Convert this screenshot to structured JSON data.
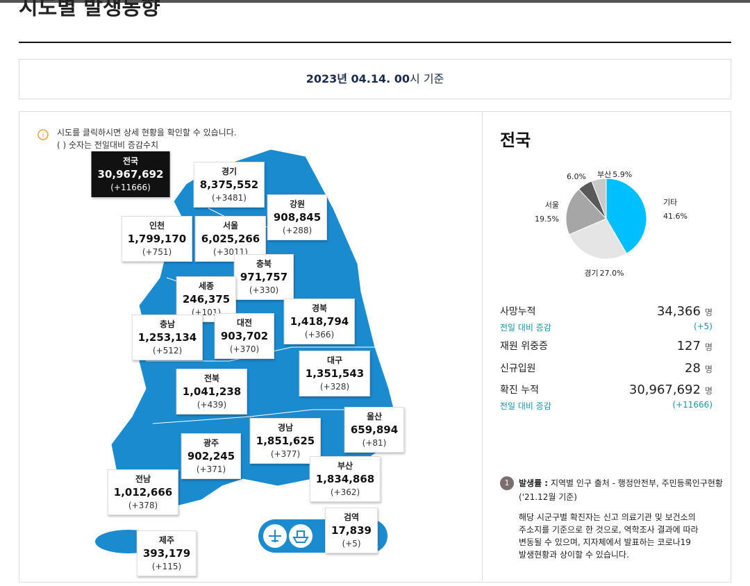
{
  "header": {
    "title": "시도별 발생동향",
    "date_main": "2023년 04.14. 00",
    "date_suffix": "시 기준"
  },
  "notes": [
    "시도를 클릭하시면 상세 현황을 확인할 수 있습니다.",
    "( ) 숫자는 전일대비 증감수치"
  ],
  "regions": [
    {
      "name": "전국",
      "total": "30,967,692",
      "change": "(+11666)"
    },
    {
      "name": "경기",
      "total": "8,375,552",
      "change": "(+3481)"
    },
    {
      "name": "강원",
      "total": "908,845",
      "change": "(+288)"
    },
    {
      "name": "인천",
      "total": "1,799,170",
      "change": "(+751)"
    },
    {
      "name": "서울",
      "total": "6,025,266",
      "change": "(+3011)"
    },
    {
      "name": "충북",
      "total": "971,757",
      "change": "(+330)"
    },
    {
      "name": "세종",
      "total": "246,375",
      "change": "(+101)"
    },
    {
      "name": "경북",
      "total": "1,418,794",
      "change": "(+366)"
    },
    {
      "name": "충남",
      "total": "1,253,134",
      "change": "(+512)"
    },
    {
      "name": "대전",
      "total": "903,702",
      "change": "(+370)"
    },
    {
      "name": "대구",
      "total": "1,351,543",
      "change": "(+328)"
    },
    {
      "name": "전북",
      "total": "1,041,238",
      "change": "(+439)"
    },
    {
      "name": "울산",
      "total": "659,894",
      "change": "(+81)"
    },
    {
      "name": "경남",
      "total": "1,851,625",
      "change": "(+377)"
    },
    {
      "name": "광주",
      "total": "902,245",
      "change": "(+371)"
    },
    {
      "name": "부산",
      "total": "1,834,868",
      "change": "(+362)"
    },
    {
      "name": "전남",
      "total": "1,012,666",
      "change": "(+378)"
    },
    {
      "name": "검역",
      "total": "17,839",
      "change": "(+5)"
    },
    {
      "name": "제주",
      "total": "393,179",
      "change": "(+115)"
    }
  ],
  "summary": {
    "title": "전국",
    "pie": {
      "type": "pie",
      "categories": [
        "기타",
        "경기",
        "서울",
        null,
        "부산"
      ],
      "values": [
        41.6,
        27.0,
        19.5,
        6.0,
        5.9
      ],
      "value_labels": [
        "41.6%",
        "27.0%",
        "19.5%",
        "6.0%",
        "5.9%"
      ],
      "colors": [
        "#00bfff",
        "#e5e5e5",
        "#a6a6a6",
        "#595959",
        "#c8c8c8"
      ]
    },
    "stats": [
      {
        "label": "사망누적",
        "value": "34,366",
        "unit": "명"
      },
      {
        "label": "전일 대비 증감",
        "value": "(+5)"
      },
      {
        "label": "재원 위중증",
        "value": "127",
        "unit": "명"
      },
      {
        "label": "신규입원",
        "value": "28",
        "unit": "명"
      },
      {
        "label": "확진 누적",
        "value": "30,967,692",
        "unit": "명"
      },
      {
        "label": "전일 대비 증감",
        "value": "(+11666)"
      }
    ]
  },
  "footnote": {
    "number": "1",
    "label": "발생률 :",
    "source": "지역별 인구 출처 - 행정안전부, 주민등록인구현황",
    "period": "('21.12월 기준)",
    "lines": [
      "해당 시군구별 확진자는 신고 의료기관 및 보건소의",
      "주소지를 기준으로 한 것으로, 역학조사 결과에 따라",
      "변동될 수 있으며, 지자체에서 발표하는 코로나19",
      "발생현황과 상이할 수 있습니다."
    ]
  }
}
